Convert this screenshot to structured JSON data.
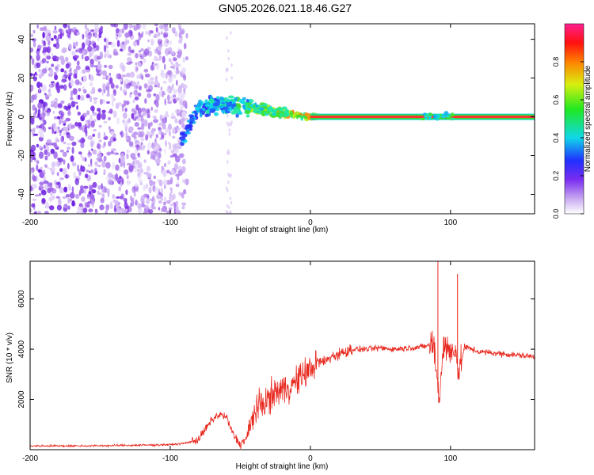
{
  "title": "GN05.2026.021.18.46.G27",
  "chart_data": [
    {
      "type": "heatmap",
      "name": "spectrogram",
      "xlabel": "Height of straight line (km)",
      "ylabel": "Frequency (Hz)",
      "xlim": [
        -200,
        160
      ],
      "ylim": [
        -50,
        48
      ],
      "xticks": [
        -200,
        -100,
        0,
        100
      ],
      "yticks": [
        -40,
        -20,
        0,
        20,
        40
      ],
      "ridge": [
        {
          "x": -90,
          "y": -10
        },
        {
          "x": -85,
          "y": -2
        },
        {
          "x": -80,
          "y": 4
        },
        {
          "x": -70,
          "y": 6
        },
        {
          "x": -60,
          "y": 6
        },
        {
          "x": -50,
          "y": 6
        },
        {
          "x": -40,
          "y": 5
        },
        {
          "x": -30,
          "y": 3
        },
        {
          "x": -20,
          "y": 2
        },
        {
          "x": -10,
          "y": 1
        },
        {
          "x": 0,
          "y": 0
        },
        {
          "x": 160,
          "y": 0
        }
      ],
      "noise_region": {
        "x": [
          -200,
          -88
        ],
        "y": [
          -50,
          48
        ]
      },
      "colorbar": {
        "label": "Normalized spectral amplitude",
        "range": [
          0,
          1
        ],
        "ticks": [
          "0.0",
          "0.2",
          "0.4",
          "0.6",
          "0.8"
        ]
      }
    },
    {
      "type": "line",
      "name": "snr",
      "xlabel": "Height of straight line (km)",
      "ylabel": "SNR (10 * v/v)",
      "xlim": [
        -200,
        160
      ],
      "ylim": [
        0,
        7500
      ],
      "xticks": [
        -200,
        -100,
        0,
        100
      ],
      "yticks": [
        2000,
        4000,
        6000
      ],
      "color": "#e8281e",
      "series": [
        {
          "name": "SNR",
          "x": [
            -200,
            -160,
            -120,
            -100,
            -90,
            -80,
            -75,
            -70,
            -65,
            -60,
            -55,
            -50,
            -45,
            -40,
            -35,
            -30,
            -25,
            -20,
            -15,
            -10,
            -5,
            0,
            5,
            10,
            15,
            20,
            25,
            30,
            40,
            50,
            60,
            70,
            80,
            88,
            92,
            95,
            98,
            100,
            103,
            106,
            110,
            120,
            130,
            140,
            150,
            160
          ],
          "y": [
            150,
            150,
            180,
            200,
            250,
            400,
            800,
            1200,
            1400,
            1300,
            600,
            200,
            500,
            1500,
            1800,
            2000,
            2300,
            2400,
            2500,
            2700,
            3000,
            3200,
            3500,
            3500,
            3700,
            3800,
            3900,
            4000,
            4000,
            4050,
            4000,
            4050,
            4100,
            4200,
            2000,
            4200,
            4000,
            3800,
            4200,
            3000,
            4100,
            3900,
            3850,
            3800,
            3750,
            3700
          ]
        }
      ],
      "annotations": [
        {
          "x": 91,
          "y": 7500,
          "label": "spike"
        },
        {
          "x": 105,
          "y": 7000,
          "label": "spike"
        }
      ]
    }
  ]
}
